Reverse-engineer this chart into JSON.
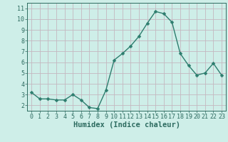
{
  "x": [
    0,
    1,
    2,
    3,
    4,
    5,
    6,
    7,
    8,
    9,
    10,
    11,
    12,
    13,
    14,
    15,
    16,
    17,
    18,
    19,
    20,
    21,
    22,
    23
  ],
  "y": [
    3.2,
    2.6,
    2.6,
    2.5,
    2.5,
    3.0,
    2.5,
    1.8,
    1.7,
    3.4,
    6.2,
    6.8,
    7.5,
    8.4,
    9.6,
    10.7,
    10.5,
    9.7,
    6.8,
    5.7,
    4.8,
    5.0,
    5.9,
    4.8
  ],
  "line_color": "#2d7d6e",
  "marker": "D",
  "marker_size": 2.5,
  "bg_color": "#ceeee8",
  "grid_color_h": "#c4b8c0",
  "grid_color_v": "#c4b8c0",
  "xlabel": "Humidex (Indice chaleur)",
  "ylim": [
    1.5,
    11.5
  ],
  "xlim": [
    -0.5,
    23.5
  ],
  "yticks": [
    2,
    3,
    4,
    5,
    6,
    7,
    8,
    9,
    10,
    11
  ],
  "xticks": [
    0,
    1,
    2,
    3,
    4,
    5,
    6,
    7,
    8,
    9,
    10,
    11,
    12,
    13,
    14,
    15,
    16,
    17,
    18,
    19,
    20,
    21,
    22,
    23
  ],
  "font_color": "#2d6b60",
  "tick_label_size": 6,
  "xlabel_size": 7.5,
  "linewidth": 1.0
}
